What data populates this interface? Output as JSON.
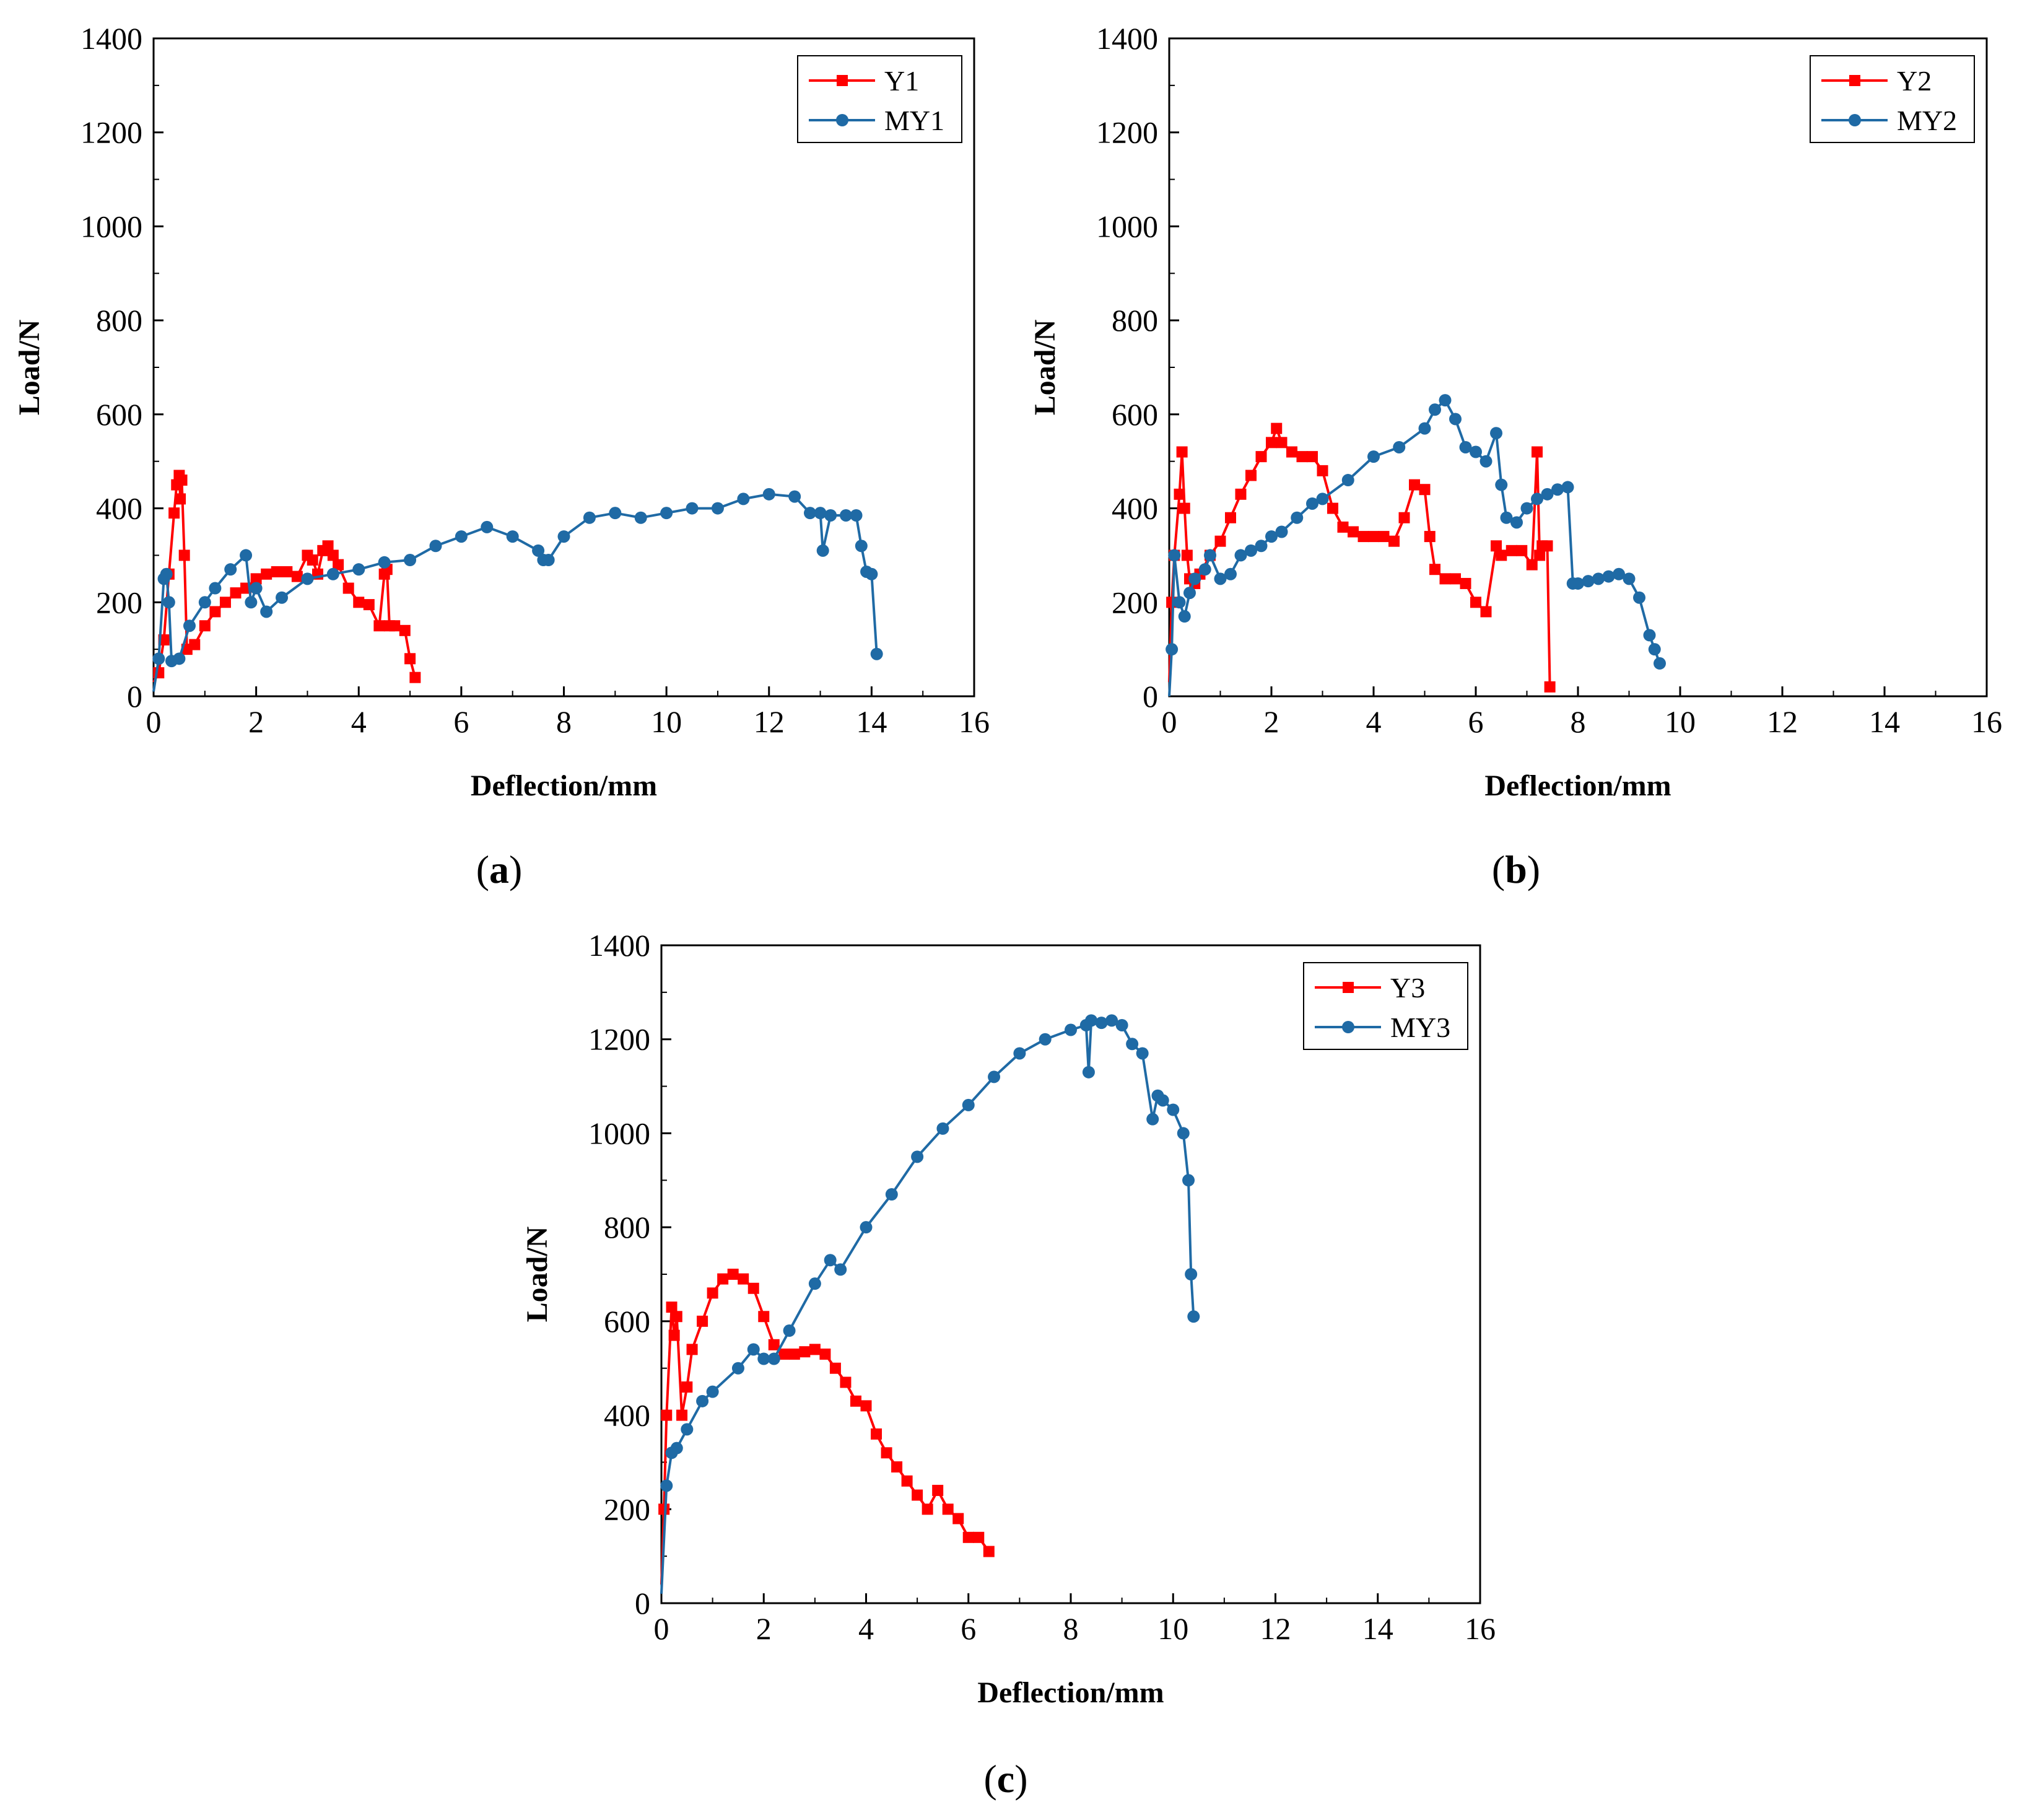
{
  "chart_data": [
    {
      "id": "a",
      "type": "line",
      "panel_label": "a",
      "xlabel": "Deflection/mm",
      "ylabel": "Load/N",
      "xlim": [
        0,
        16
      ],
      "ylim": [
        0,
        1400
      ],
      "xticks": [
        0,
        2,
        4,
        6,
        8,
        10,
        12,
        14,
        16
      ],
      "yticks": [
        0,
        200,
        400,
        600,
        800,
        1000,
        1200,
        1400
      ],
      "legend_position": "top-right",
      "series": [
        {
          "name": "Y1",
          "color": "#ff0000",
          "marker": "square",
          "x": [
            0,
            0.1,
            0.2,
            0.3,
            0.4,
            0.45,
            0.5,
            0.52,
            0.55,
            0.6,
            0.65,
            0.8,
            1.0,
            1.2,
            1.4,
            1.6,
            1.8,
            2.0,
            2.2,
            2.4,
            2.6,
            2.8,
            3.0,
            3.1,
            3.2,
            3.3,
            3.4,
            3.5,
            3.6,
            3.8,
            4.0,
            4.2,
            4.4,
            4.5,
            4.55,
            4.6,
            4.7,
            4.9,
            5.0,
            5.1
          ],
          "y": [
            30,
            50,
            120,
            260,
            390,
            450,
            470,
            420,
            460,
            300,
            100,
            110,
            150,
            180,
            200,
            220,
            230,
            250,
            260,
            265,
            265,
            255,
            300,
            290,
            260,
            310,
            320,
            300,
            280,
            230,
            200,
            195,
            150,
            260,
            270,
            150,
            150,
            140,
            80,
            40
          ]
        },
        {
          "name": "MY1",
          "color": "#1f6aa5",
          "marker": "circle",
          "x": [
            0,
            0.1,
            0.2,
            0.25,
            0.3,
            0.35,
            0.5,
            0.7,
            1.0,
            1.2,
            1.5,
            1.8,
            1.9,
            2.0,
            2.2,
            2.5,
            3.0,
            3.5,
            4.0,
            4.5,
            5.0,
            5.5,
            6.0,
            6.5,
            7.0,
            7.5,
            7.6,
            7.7,
            8.0,
            8.5,
            9.0,
            9.5,
            10.0,
            10.5,
            11.0,
            11.5,
            12.0,
            12.5,
            12.8,
            13.0,
            13.05,
            13.2,
            13.5,
            13.7,
            13.8,
            13.9,
            14.0,
            14.1
          ],
          "y": [
            10,
            80,
            250,
            260,
            200,
            75,
            80,
            150,
            200,
            230,
            270,
            300,
            200,
            230,
            180,
            210,
            250,
            260,
            270,
            285,
            290,
            320,
            340,
            360,
            340,
            310,
            290,
            290,
            340,
            380,
            390,
            380,
            390,
            400,
            400,
            420,
            430,
            425,
            390,
            390,
            310,
            385,
            385,
            385,
            320,
            265,
            260,
            90
          ]
        }
      ]
    },
    {
      "id": "b",
      "type": "line",
      "panel_label": "b",
      "xlabel": "Deflection/mm",
      "ylabel": "Load/N",
      "xlim": [
        0,
        16
      ],
      "ylim": [
        0,
        1400
      ],
      "xticks": [
        0,
        2,
        4,
        6,
        8,
        10,
        12,
        14,
        16
      ],
      "yticks": [
        0,
        200,
        400,
        600,
        800,
        1000,
        1200,
        1400
      ],
      "legend_position": "top-right",
      "series": [
        {
          "name": "Y2",
          "color": "#ff0000",
          "marker": "square",
          "x": [
            0,
            0.05,
            0.1,
            0.2,
            0.25,
            0.3,
            0.35,
            0.4,
            0.5,
            0.6,
            0.8,
            1.0,
            1.2,
            1.4,
            1.6,
            1.8,
            2.0,
            2.1,
            2.2,
            2.4,
            2.6,
            2.8,
            3.0,
            3.2,
            3.4,
            3.6,
            3.8,
            4.0,
            4.2,
            4.4,
            4.6,
            4.8,
            5.0,
            5.1,
            5.2,
            5.4,
            5.6,
            5.8,
            6.0,
            6.2,
            6.4,
            6.5,
            6.7,
            6.9,
            7.1,
            7.2,
            7.25,
            7.3,
            7.4,
            7.45
          ],
          "y": [
            30,
            200,
            300,
            430,
            520,
            400,
            300,
            250,
            240,
            260,
            300,
            330,
            380,
            430,
            470,
            510,
            540,
            570,
            540,
            520,
            510,
            510,
            480,
            400,
            360,
            350,
            340,
            340,
            340,
            330,
            380,
            450,
            440,
            340,
            270,
            250,
            250,
            240,
            200,
            180,
            320,
            300,
            310,
            310,
            280,
            520,
            300,
            320,
            320,
            20
          ]
        },
        {
          "name": "MY2",
          "color": "#1f6aa5",
          "marker": "circle",
          "x": [
            0,
            0.05,
            0.1,
            0.2,
            0.3,
            0.4,
            0.5,
            0.7,
            0.8,
            1.0,
            1.2,
            1.4,
            1.6,
            1.8,
            2.0,
            2.2,
            2.5,
            2.8,
            3.0,
            3.5,
            4.0,
            4.5,
            5.0,
            5.2,
            5.4,
            5.6,
            5.8,
            6.0,
            6.2,
            6.4,
            6.5,
            6.6,
            6.8,
            7.0,
            7.2,
            7.4,
            7.6,
            7.8,
            7.9,
            8.0,
            8.2,
            8.4,
            8.6,
            8.8,
            9.0,
            9.2,
            9.4,
            9.5,
            9.6
          ],
          "y": [
            0,
            100,
            300,
            200,
            170,
            220,
            250,
            270,
            300,
            250,
            260,
            300,
            310,
            320,
            340,
            350,
            380,
            410,
            420,
            460,
            510,
            530,
            570,
            610,
            630,
            590,
            530,
            520,
            500,
            560,
            450,
            380,
            370,
            400,
            420,
            430,
            440,
            445,
            240,
            240,
            245,
            250,
            255,
            260,
            250,
            210,
            130,
            100,
            70
          ]
        }
      ]
    },
    {
      "id": "c",
      "type": "line",
      "panel_label": "c",
      "xlabel": "Deflection/mm",
      "ylabel": "Load/N",
      "xlim": [
        0,
        16
      ],
      "ylim": [
        0,
        1400
      ],
      "xticks": [
        0,
        2,
        4,
        6,
        8,
        10,
        12,
        14,
        16
      ],
      "yticks": [
        0,
        200,
        400,
        600,
        800,
        1000,
        1200,
        1400
      ],
      "legend_position": "top-right",
      "series": [
        {
          "name": "Y3",
          "color": "#ff0000",
          "marker": "square",
          "x": [
            0,
            0.05,
            0.1,
            0.2,
            0.25,
            0.3,
            0.4,
            0.5,
            0.6,
            0.8,
            1.0,
            1.2,
            1.4,
            1.6,
            1.8,
            2.0,
            2.2,
            2.4,
            2.6,
            2.8,
            3.0,
            3.2,
            3.4,
            3.6,
            3.8,
            4.0,
            4.2,
            4.4,
            4.6,
            4.8,
            5.0,
            5.2,
            5.4,
            5.6,
            5.8,
            6.0,
            6.2,
            6.4
          ],
          "y": [
            40,
            200,
            400,
            630,
            570,
            610,
            400,
            460,
            540,
            600,
            660,
            690,
            700,
            690,
            670,
            610,
            550,
            530,
            530,
            535,
            540,
            530,
            500,
            470,
            430,
            420,
            360,
            320,
            290,
            260,
            230,
            200,
            240,
            200,
            180,
            140,
            140,
            110
          ]
        },
        {
          "name": "MY3",
          "color": "#1f6aa5",
          "marker": "circle",
          "x": [
            0,
            0.1,
            0.2,
            0.3,
            0.5,
            0.8,
            1.0,
            1.5,
            1.8,
            2.0,
            2.2,
            2.5,
            3.0,
            3.3,
            3.5,
            4.0,
            4.5,
            5.0,
            5.5,
            6.0,
            6.5,
            7.0,
            7.5,
            8.0,
            8.3,
            8.35,
            8.4,
            8.6,
            8.8,
            9.0,
            9.2,
            9.4,
            9.6,
            9.7,
            9.8,
            10.0,
            10.2,
            10.3,
            10.35,
            10.4
          ],
          "y": [
            20,
            250,
            320,
            330,
            370,
            430,
            450,
            500,
            540,
            520,
            520,
            580,
            680,
            730,
            710,
            800,
            870,
            950,
            1010,
            1060,
            1120,
            1170,
            1200,
            1220,
            1230,
            1130,
            1240,
            1235,
            1240,
            1230,
            1190,
            1170,
            1030,
            1080,
            1070,
            1050,
            1000,
            900,
            700,
            610
          ]
        }
      ]
    }
  ]
}
